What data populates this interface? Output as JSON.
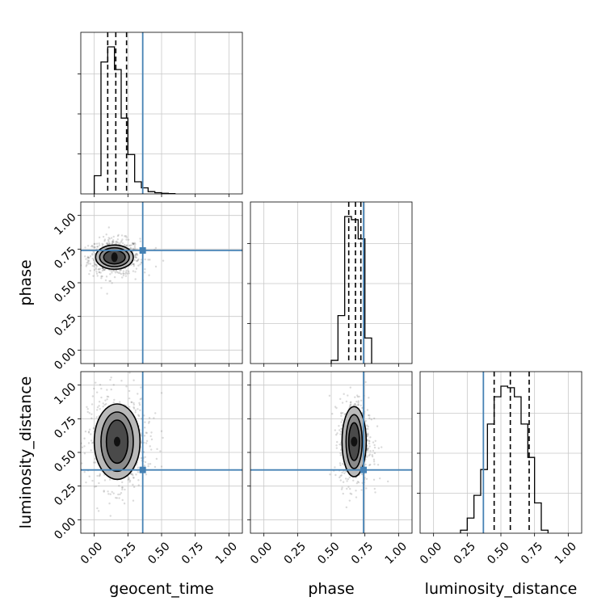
{
  "parameters": [
    "geocent_time",
    "phase",
    "luminosity_distance"
  ],
  "truths": [
    0.36,
    0.74,
    0.37
  ],
  "colors": {
    "truth": "#4682b4",
    "hist": "#000000",
    "grid": "#c8c8c8",
    "points": "#555555",
    "contour_fill_levels": [
      "#e6e6e6",
      "#b9b9b9",
      "#8a8a8a",
      "#4a4a4a",
      "#111111"
    ]
  },
  "chart_data": {
    "type": "corner",
    "grid": true,
    "axis_range": [
      -0.1,
      1.1
    ],
    "ticks": [
      0.0,
      0.25,
      0.5,
      0.75,
      1.0
    ],
    "tick_labels": [
      "0.00",
      "0.25",
      "0.50",
      "0.75",
      "1.00"
    ],
    "xlabels": [
      "geocent_time",
      "phase",
      "luminosity_distance"
    ],
    "ylabels": [
      "",
      "phase",
      "luminosity_distance"
    ],
    "histograms": [
      {
        "parameter": "geocent_time",
        "bin_edges": [
          0.0,
          0.05,
          0.1,
          0.15,
          0.2,
          0.25,
          0.3,
          0.35,
          0.4,
          0.45,
          0.5,
          0.55,
          0.6
        ],
        "counts": [
          0.12,
          0.87,
          0.97,
          0.82,
          0.5,
          0.26,
          0.08,
          0.04,
          0.015,
          0.008,
          0.004,
          0.002
        ],
        "quantiles": [
          0.1,
          0.16,
          0.24
        ]
      },
      {
        "parameter": "phase",
        "bin_edges": [
          0.5,
          0.55,
          0.6,
          0.65,
          0.7,
          0.75,
          0.8
        ],
        "counts": [
          0.02,
          0.3,
          0.92,
          0.9,
          0.78,
          0.16
        ],
        "quantiles": [
          0.63,
          0.68,
          0.72
        ]
      },
      {
        "parameter": "luminosity_distance",
        "bin_edges": [
          0.2,
          0.25,
          0.3,
          0.35,
          0.4,
          0.45,
          0.5,
          0.55,
          0.6,
          0.65,
          0.7,
          0.75,
          0.8,
          0.85
        ],
        "counts": [
          0.02,
          0.1,
          0.25,
          0.42,
          0.72,
          0.9,
          0.97,
          0.96,
          0.9,
          0.72,
          0.5,
          0.2,
          0.02
        ],
        "quantiles": [
          0.45,
          0.57,
          0.71
        ]
      }
    ],
    "density_panels": [
      {
        "x": "geocent_time",
        "y": "phase",
        "center": [
          0.15,
          0.69
        ],
        "spread": [
          0.07,
          0.05
        ],
        "contours": [
          [
            0.08,
            0.05
          ],
          [
            0.11,
            0.07
          ],
          [
            0.14,
            0.09
          ]
        ]
      },
      {
        "x": "geocent_time",
        "y": "luminosity_distance",
        "center": [
          0.17,
          0.58
        ],
        "spread": [
          0.08,
          0.13
        ],
        "contours": [
          [
            0.08,
            0.16
          ],
          [
            0.12,
            0.22
          ],
          [
            0.17,
            0.28
          ]
        ]
      },
      {
        "x": "phase",
        "y": "luminosity_distance",
        "center": [
          0.67,
          0.58
        ],
        "spread": [
          0.04,
          0.12
        ],
        "contours": [
          [
            0.04,
            0.14
          ],
          [
            0.06,
            0.2
          ],
          [
            0.09,
            0.26
          ]
        ]
      }
    ]
  }
}
